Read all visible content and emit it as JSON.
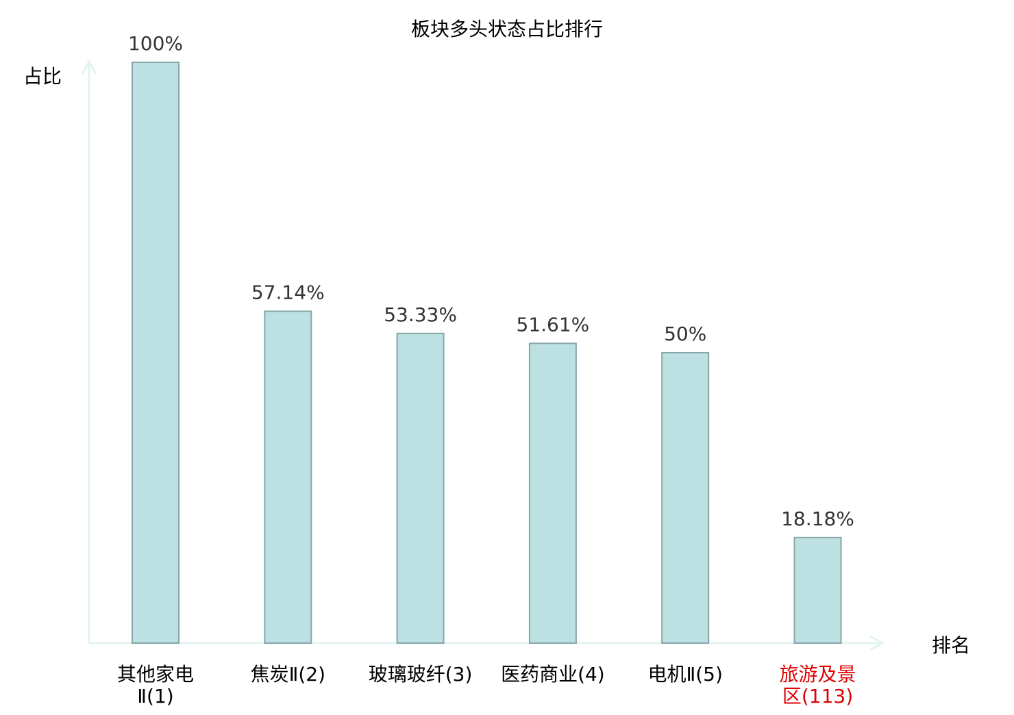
{
  "chart_data": {
    "type": "bar",
    "title": "板块多头状态占比排行",
    "ylabel": "占比",
    "xlabel": "排名",
    "categories": [
      [
        "其他家电",
        "Ⅱ(1)"
      ],
      [
        "焦炭Ⅱ(2)"
      ],
      [
        "玻璃玻纤(3)"
      ],
      [
        "医药商业(4)"
      ],
      [
        "电机Ⅱ(5)"
      ],
      [
        "旅游及景",
        "区(113)"
      ]
    ],
    "values": [
      100,
      57.14,
      53.33,
      51.61,
      50,
      18.18
    ],
    "value_labels": [
      "100%",
      "57.14%",
      "53.33%",
      "51.61%",
      "50%",
      "18.18%"
    ],
    "highlight_index": 5,
    "ylim": [
      0,
      100
    ],
    "grid": false,
    "colors": {
      "bar_fill": "#bde0e2",
      "bar_stroke": "#87a6a8",
      "axis": "#e3f3f0",
      "text": "#333333",
      "label": "#000000",
      "highlight": "#dd0000"
    }
  }
}
